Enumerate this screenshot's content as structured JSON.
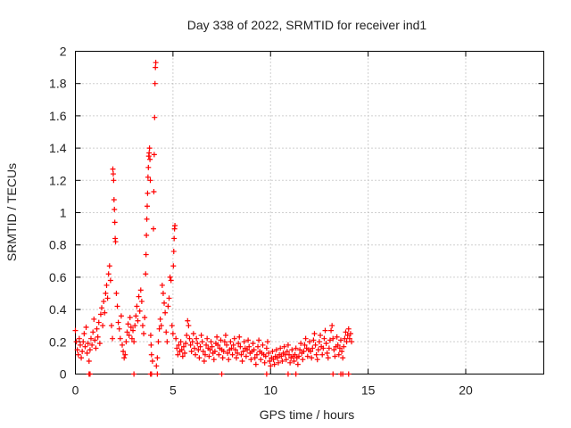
{
  "chart_data": {
    "type": "scatter",
    "title": "Day 338 of 2022, SRMTID for receiver ind1",
    "xlabel": "GPS time / hours",
    "ylabel": "SRMTID / TECUs",
    "xlim": [
      0,
      24
    ],
    "ylim": [
      0,
      2
    ],
    "x_ticks": [
      0,
      5,
      10,
      15,
      20
    ],
    "x_tick_labels": [
      "0",
      "5",
      "10",
      "15",
      "20"
    ],
    "y_ticks": [
      0,
      0.2,
      0.4,
      0.6,
      0.8,
      1,
      1.2,
      1.4,
      1.6,
      1.8,
      2
    ],
    "y_tick_labels": [
      "0",
      "0.2",
      "0.4",
      "0.6",
      "0.8",
      "1",
      "1.2",
      "1.4",
      "1.6",
      "1.8",
      "2"
    ],
    "grid": true,
    "marker": "+",
    "series": [
      {
        "name": "SRMTID",
        "color": "#ff0000",
        "points": [
          [
            0.0,
            0.27
          ],
          [
            0.05,
            0.2
          ],
          [
            0.1,
            0.15
          ],
          [
            0.15,
            0.12
          ],
          [
            0.2,
            0.22
          ],
          [
            0.25,
            0.18
          ],
          [
            0.3,
            0.1
          ],
          [
            0.35,
            0.14
          ],
          [
            0.4,
            0.2
          ],
          [
            0.45,
            0.25
          ],
          [
            0.5,
            0.17
          ],
          [
            0.55,
            0.29
          ],
          [
            0.6,
            0.13
          ],
          [
            0.65,
            0.19
          ],
          [
            0.7,
            0.08
          ],
          [
            0.75,
            0.15
          ],
          [
            0.8,
            0.22
          ],
          [
            0.85,
            0.18
          ],
          [
            0.9,
            0.26
          ],
          [
            0.95,
            0.34
          ],
          [
            1.0,
            0.21
          ],
          [
            1.05,
            0.16
          ],
          [
            1.1,
            0.28
          ],
          [
            1.15,
            0.23
          ],
          [
            1.2,
            0.32
          ],
          [
            1.25,
            0.19
          ],
          [
            1.3,
            0.37
          ],
          [
            1.35,
            0.41
          ],
          [
            1.4,
            0.3
          ],
          [
            1.45,
            0.45
          ],
          [
            1.5,
            0.38
          ],
          [
            1.55,
            0.5
          ],
          [
            1.6,
            0.55
          ],
          [
            1.65,
            0.47
          ],
          [
            1.7,
            0.62
          ],
          [
            1.75,
            0.67
          ],
          [
            1.8,
            0.58
          ],
          [
            1.85,
            0.3
          ],
          [
            1.9,
            0.22
          ],
          [
            1.92,
            1.27
          ],
          [
            1.94,
            1.24
          ],
          [
            1.96,
            1.2
          ],
          [
            1.98,
            1.08
          ],
          [
            2.0,
            1.02
          ],
          [
            2.02,
            0.94
          ],
          [
            2.04,
            0.84
          ],
          [
            2.06,
            0.82
          ],
          [
            2.1,
            0.5
          ],
          [
            2.15,
            0.42
          ],
          [
            2.2,
            0.32
          ],
          [
            2.25,
            0.28
          ],
          [
            2.3,
            0.22
          ],
          [
            2.35,
            0.36
          ],
          [
            2.4,
            0.18
          ],
          [
            2.45,
            0.14
          ],
          [
            2.5,
            0.1
          ],
          [
            2.55,
            0.12
          ],
          [
            2.6,
            0.2
          ],
          [
            2.65,
            0.26
          ],
          [
            2.7,
            0.31
          ],
          [
            2.75,
            0.24
          ],
          [
            2.8,
            0.35
          ],
          [
            2.85,
            0.29
          ],
          [
            2.9,
            0.22
          ],
          [
            2.95,
            0.27
          ],
          [
            3.0,
            0.2
          ],
          [
            3.05,
            0.3
          ],
          [
            3.1,
            0.36
          ],
          [
            3.15,
            0.42
          ],
          [
            3.2,
            0.33
          ],
          [
            3.25,
            0.48
          ],
          [
            3.3,
            0.39
          ],
          [
            3.35,
            0.52
          ],
          [
            3.4,
            0.45
          ],
          [
            3.45,
            0.3
          ],
          [
            3.5,
            0.25
          ],
          [
            3.55,
            0.35
          ],
          [
            3.6,
            0.62
          ],
          [
            3.62,
            0.74
          ],
          [
            3.64,
            0.86
          ],
          [
            3.66,
            0.96
          ],
          [
            3.68,
            1.04
          ],
          [
            3.7,
            1.12
          ],
          [
            3.72,
            1.22
          ],
          [
            3.74,
            1.28
          ],
          [
            3.76,
            1.35
          ],
          [
            3.78,
            1.37
          ],
          [
            3.8,
            1.4
          ],
          [
            3.82,
            1.33
          ],
          [
            3.84,
            1.2
          ],
          [
            3.86,
            0.24
          ],
          [
            3.88,
            0.18
          ],
          [
            3.9,
            0.12
          ],
          [
            3.95,
            0.08
          ],
          [
            4.0,
            0.9
          ],
          [
            4.02,
            1.13
          ],
          [
            4.04,
            1.36
          ],
          [
            4.06,
            1.59
          ],
          [
            4.08,
            1.8
          ],
          [
            4.1,
            1.9
          ],
          [
            4.12,
            1.93
          ],
          [
            4.15,
            0.05
          ],
          [
            4.2,
            0.1
          ],
          [
            4.25,
            0.2
          ],
          [
            4.3,
            0.28
          ],
          [
            4.35,
            0.34
          ],
          [
            4.4,
            0.3
          ],
          [
            4.45,
            0.55
          ],
          [
            4.5,
            0.5
          ],
          [
            4.55,
            0.44
          ],
          [
            4.6,
            0.38
          ],
          [
            4.65,
            0.26
          ],
          [
            4.7,
            0.2
          ],
          [
            4.75,
            0.42
          ],
          [
            4.8,
            0.47
          ],
          [
            4.85,
            0.6
          ],
          [
            4.9,
            0.58
          ],
          [
            4.95,
            0.3
          ],
          [
            5.0,
            0.25
          ],
          [
            5.02,
            0.67
          ],
          [
            5.04,
            0.76
          ],
          [
            5.06,
            0.84
          ],
          [
            5.08,
            0.9
          ],
          [
            5.1,
            0.92
          ],
          [
            5.15,
            0.22
          ],
          [
            5.2,
            0.16
          ],
          [
            5.25,
            0.12
          ],
          [
            5.3,
            0.18
          ],
          [
            5.35,
            0.14
          ],
          [
            5.4,
            0.2
          ],
          [
            5.45,
            0.15
          ],
          [
            5.5,
            0.11
          ],
          [
            5.55,
            0.17
          ],
          [
            5.6,
            0.13
          ],
          [
            5.65,
            0.19
          ],
          [
            5.7,
            0.24
          ],
          [
            5.75,
            0.33
          ],
          [
            5.8,
            0.3
          ],
          [
            5.85,
            0.22
          ],
          [
            5.9,
            0.18
          ],
          [
            5.95,
            0.14
          ],
          [
            6.0,
            0.2
          ],
          [
            6.05,
            0.25
          ],
          [
            6.1,
            0.16
          ],
          [
            6.15,
            0.12
          ],
          [
            6.2,
            0.22
          ],
          [
            6.25,
            0.19
          ],
          [
            6.3,
            0.15
          ],
          [
            6.35,
            0.1
          ],
          [
            6.4,
            0.17
          ],
          [
            6.45,
            0.24
          ],
          [
            6.5,
            0.2
          ],
          [
            6.55,
            0.14
          ],
          [
            6.6,
            0.08
          ],
          [
            6.65,
            0.12
          ],
          [
            6.7,
            0.18
          ],
          [
            6.75,
            0.22
          ],
          [
            6.8,
            0.16
          ],
          [
            6.85,
            0.11
          ],
          [
            6.9,
            0.15
          ],
          [
            6.95,
            0.2
          ],
          [
            7.0,
            0.17
          ],
          [
            7.05,
            0.13
          ],
          [
            7.1,
            0.09
          ],
          [
            7.15,
            0.14
          ],
          [
            7.2,
            0.19
          ],
          [
            7.25,
            0.23
          ],
          [
            7.3,
            0.18
          ],
          [
            7.35,
            0.12
          ],
          [
            7.4,
            0.16
          ],
          [
            7.45,
            0.21
          ],
          [
            7.5,
            0.15
          ],
          [
            7.55,
            0.1
          ],
          [
            7.6,
            0.14
          ],
          [
            7.65,
            0.2
          ],
          [
            7.7,
            0.24
          ],
          [
            7.75,
            0.18
          ],
          [
            7.8,
            0.13
          ],
          [
            7.85,
            0.09
          ],
          [
            7.9,
            0.15
          ],
          [
            7.95,
            0.2
          ],
          [
            8.0,
            0.16
          ],
          [
            8.05,
            0.12
          ],
          [
            8.1,
            0.18
          ],
          [
            8.15,
            0.22
          ],
          [
            8.2,
            0.15
          ],
          [
            8.25,
            0.1
          ],
          [
            8.3,
            0.13
          ],
          [
            8.35,
            0.19
          ],
          [
            8.4,
            0.23
          ],
          [
            8.45,
            0.17
          ],
          [
            8.5,
            0.12
          ],
          [
            8.55,
            0.08
          ],
          [
            8.6,
            0.14
          ],
          [
            8.65,
            0.2
          ],
          [
            8.7,
            0.16
          ],
          [
            8.75,
            0.11
          ],
          [
            8.8,
            0.15
          ],
          [
            8.85,
            0.21
          ],
          [
            8.9,
            0.17
          ],
          [
            8.95,
            0.13
          ],
          [
            9.0,
            0.09
          ],
          [
            9.05,
            0.14
          ],
          [
            9.1,
            0.19
          ],
          [
            9.15,
            0.15
          ],
          [
            9.2,
            0.1
          ],
          [
            9.25,
            0.06
          ],
          [
            9.3,
            0.12
          ],
          [
            9.35,
            0.17
          ],
          [
            9.4,
            0.21
          ],
          [
            9.45,
            0.14
          ],
          [
            9.5,
            0.09
          ],
          [
            9.55,
            0.13
          ],
          [
            9.6,
            0.18
          ],
          [
            9.65,
            0.12
          ],
          [
            9.7,
            0.07
          ],
          [
            9.75,
            0.11
          ],
          [
            9.8,
            0.16
          ],
          [
            9.85,
            0.2
          ],
          [
            9.9,
            0.13
          ],
          [
            9.95,
            0.08
          ],
          [
            10.0,
            0.05
          ],
          [
            10.05,
            0.1
          ],
          [
            10.1,
            0.14
          ],
          [
            10.15,
            0.09
          ],
          [
            10.2,
            0.06
          ],
          [
            10.25,
            0.11
          ],
          [
            10.3,
            0.15
          ],
          [
            10.35,
            0.1
          ],
          [
            10.4,
            0.07
          ],
          [
            10.45,
            0.12
          ],
          [
            10.5,
            0.16
          ],
          [
            10.55,
            0.11
          ],
          [
            10.6,
            0.08
          ],
          [
            10.65,
            0.13
          ],
          [
            10.7,
            0.17
          ],
          [
            10.75,
            0.12
          ],
          [
            10.8,
            0.09
          ],
          [
            10.85,
            0.14
          ],
          [
            10.9,
            0.18
          ],
          [
            10.95,
            0.12
          ],
          [
            11.0,
            0.07
          ],
          [
            11.05,
            0.1
          ],
          [
            11.1,
            0.15
          ],
          [
            11.15,
            0.11
          ],
          [
            11.2,
            0.08
          ],
          [
            11.25,
            0.12
          ],
          [
            11.3,
            0.16
          ],
          [
            11.35,
            0.1
          ],
          [
            11.4,
            0.06
          ],
          [
            11.45,
            0.11
          ],
          [
            11.5,
            0.15
          ],
          [
            11.55,
            0.19
          ],
          [
            11.6,
            0.13
          ],
          [
            11.65,
            0.09
          ],
          [
            11.7,
            0.14
          ],
          [
            11.75,
            0.18
          ],
          [
            11.8,
            0.22
          ],
          [
            11.85,
            0.16
          ],
          [
            11.9,
            0.11
          ],
          [
            11.95,
            0.15
          ],
          [
            12.0,
            0.2
          ],
          [
            12.05,
            0.14
          ],
          [
            12.1,
            0.1
          ],
          [
            12.15,
            0.16
          ],
          [
            12.2,
            0.21
          ],
          [
            12.25,
            0.25
          ],
          [
            12.3,
            0.18
          ],
          [
            12.35,
            0.12
          ],
          [
            12.4,
            0.09
          ],
          [
            12.45,
            0.15
          ],
          [
            12.5,
            0.2
          ],
          [
            12.55,
            0.24
          ],
          [
            12.6,
            0.17
          ],
          [
            12.65,
            0.12
          ],
          [
            12.7,
            0.16
          ],
          [
            12.75,
            0.22
          ],
          [
            12.8,
            0.27
          ],
          [
            12.85,
            0.19
          ],
          [
            12.9,
            0.13
          ],
          [
            12.95,
            0.1
          ],
          [
            13.0,
            0.16
          ],
          [
            13.05,
            0.21
          ],
          [
            13.1,
            0.27
          ],
          [
            13.15,
            0.3
          ],
          [
            13.2,
            0.22
          ],
          [
            13.25,
            0.15
          ],
          [
            13.3,
            0.11
          ],
          [
            13.35,
            0.17
          ],
          [
            13.4,
            0.23
          ],
          [
            13.45,
            0.18
          ],
          [
            13.5,
            0.12
          ],
          [
            13.55,
            0.16
          ],
          [
            13.6,
            0.21
          ],
          [
            13.65,
            0.14
          ],
          [
            13.7,
            0.1
          ],
          [
            13.75,
            0.17
          ],
          [
            13.8,
            0.22
          ],
          [
            13.85,
            0.26
          ],
          [
            13.9,
            0.2
          ],
          [
            13.95,
            0.24
          ],
          [
            14.0,
            0.28
          ],
          [
            14.05,
            0.22
          ],
          [
            14.1,
            0.25
          ],
          [
            14.15,
            0.2
          ],
          [
            0.7,
            0.0
          ],
          [
            0.75,
            0.0
          ],
          [
            3.0,
            0.0
          ],
          [
            3.85,
            0.0
          ],
          [
            3.9,
            0.0
          ],
          [
            4.2,
            0.0
          ],
          [
            7.5,
            0.0
          ],
          [
            9.8,
            0.0
          ],
          [
            10.9,
            0.0
          ],
          [
            11.3,
            0.0
          ],
          [
            13.2,
            0.0
          ],
          [
            13.6,
            0.0
          ],
          [
            13.7,
            0.0
          ],
          [
            14.0,
            0.0
          ]
        ]
      }
    ]
  }
}
